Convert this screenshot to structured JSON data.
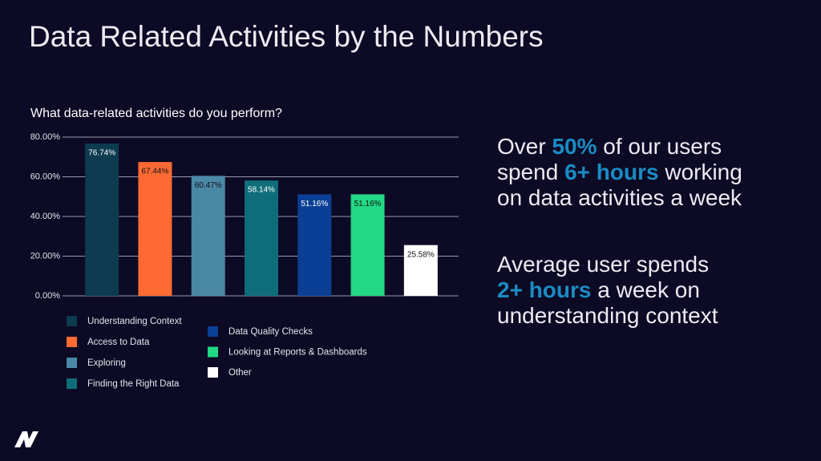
{
  "slide": {
    "title": "Data Related Activities by the Numbers",
    "callouts": [
      {
        "lines": [
          [
            {
              "text": "Over "
            },
            {
              "text": "50%",
              "highlight": true
            },
            {
              "text": " of our users"
            }
          ],
          [
            {
              "text": "spend "
            },
            {
              "text": "6+ hours",
              "highlight": true
            },
            {
              "text": " working"
            }
          ],
          [
            {
              "text": "on data activities a week"
            }
          ]
        ]
      },
      {
        "lines": [
          [
            {
              "text": "Average user spends"
            }
          ],
          [
            {
              "text": "2+ hours",
              "highlight": true
            },
            {
              "text": " a week on"
            }
          ],
          [
            {
              "text": "understanding context"
            }
          ]
        ]
      }
    ],
    "highlight_color": "#1b8cc4"
  },
  "chart_data": {
    "type": "bar",
    "title": "What data-related activities do you perform?",
    "categories": [
      "Understanding Context",
      "Access to Data",
      "Exploring",
      "Finding the Right Data",
      "Data Quality Checks",
      "Looking at Reports & Dashboards",
      "Other"
    ],
    "values": [
      76.74,
      67.44,
      60.47,
      58.14,
      51.16,
      51.16,
      25.58
    ],
    "value_labels": [
      "76.74%",
      "67.44%",
      "60.47%",
      "58.14%",
      "51.16%",
      "51.16%",
      "25.58%"
    ],
    "colors": [
      "#0d3b50",
      "#ff6a33",
      "#4a88a6",
      "#0f6d7a",
      "#0b3f96",
      "#22d884",
      "#ffffff"
    ],
    "ylim": [
      0,
      80
    ],
    "yticks": [
      {
        "value": 0,
        "label": "0.00%"
      },
      {
        "value": 20,
        "label": "20.00%"
      },
      {
        "value": 40,
        "label": "40.00%"
      },
      {
        "value": 60,
        "label": "60.00%"
      },
      {
        "value": 80,
        "label": "80.00%"
      }
    ],
    "grid": true,
    "legend": "bottom"
  }
}
